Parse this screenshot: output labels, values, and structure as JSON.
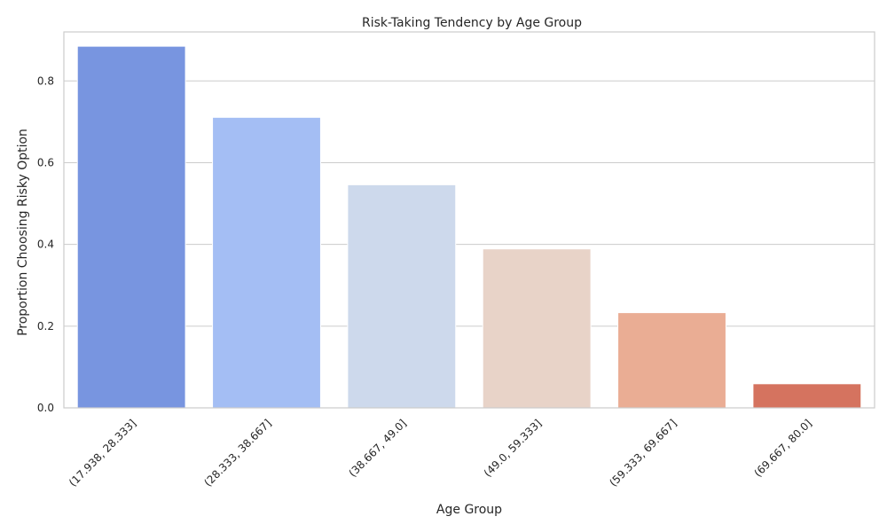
{
  "chart_data": {
    "type": "bar",
    "title": "Risk-Taking Tendency by Age Group",
    "xlabel": "Age Group",
    "ylabel": "Proportion Choosing Risky Option",
    "categories": [
      "(17.938, 28.333]",
      "(28.333, 38.667]",
      "(38.667, 49.0]",
      "(49.0, 59.333]",
      "(59.333, 69.667]",
      "(69.667, 80.0]"
    ],
    "values": [
      0.885,
      0.711,
      0.546,
      0.389,
      0.233,
      0.059
    ],
    "colors": [
      "#7895e0",
      "#a4bef4",
      "#cdd9ec",
      "#e8d3c8",
      "#eaad94",
      "#d5735f"
    ],
    "ylim": [
      0,
      0.92
    ],
    "yticks": [
      0.0,
      0.2,
      0.4,
      0.6,
      0.8
    ],
    "ytick_labels": [
      "0.0",
      "0.2",
      "0.4",
      "0.6",
      "0.8"
    ],
    "grid": "horizontal",
    "xtick_rotation": 45
  }
}
